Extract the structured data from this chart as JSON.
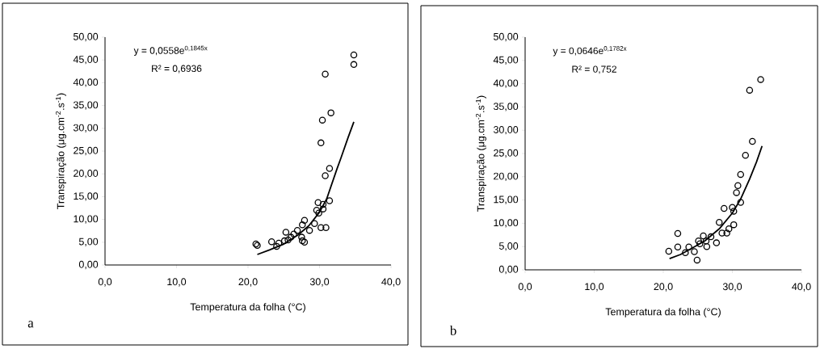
{
  "chart_data": [
    {
      "type": "scatter",
      "xlabel": "Temperatura da folha (°C)",
      "ylabel": "Transpiração (μg.cm$^{-2}$.s$^{-1}$)",
      "marker": "circle",
      "xlim": [
        0,
        40
      ],
      "ylim": [
        0,
        50
      ],
      "xticks": [
        {
          "value": 0,
          "label": "0,0"
        },
        {
          "value": 10,
          "label": "10,0"
        },
        {
          "value": 20,
          "label": "20,0"
        },
        {
          "value": 30,
          "label": "30,0"
        },
        {
          "value": 40,
          "label": "40,0"
        }
      ],
      "yticks": [
        {
          "value": 0,
          "label": "0,00"
        },
        {
          "value": 5,
          "label": "5,00"
        },
        {
          "value": 10,
          "label": "10,00"
        },
        {
          "value": 15,
          "label": "15,00"
        },
        {
          "value": 20,
          "label": "20,00"
        },
        {
          "value": 25,
          "label": "25,00"
        },
        {
          "value": 30,
          "label": "30,00"
        },
        {
          "value": 35,
          "label": "35,00"
        },
        {
          "value": 40,
          "label": "40,00"
        },
        {
          "value": 45,
          "label": "45,00"
        },
        {
          "value": 50,
          "label": "50,00"
        }
      ],
      "annotations": [
        "y = 0,0558e$^{0,1845x}$",
        "R² = 0,6936",
        "a"
      ],
      "series": [
        {
          "color": "#000000",
          "x": [
            34.8,
            34.8,
            30.8,
            31.6,
            30.4,
            30.2,
            31.4,
            30.8,
            31.4,
            29.8,
            30.5,
            29.6,
            30.5,
            29.9,
            27.9,
            27.6,
            29.3,
            28.6,
            30.2,
            30.9,
            26.9,
            26.4,
            25.3,
            26.0,
            27.5,
            27.9,
            27.6,
            25.1,
            24.3,
            23.3,
            25.6,
            21.1,
            21.3,
            24.0
          ],
          "values": [
            46.1,
            44.0,
            41.9,
            33.4,
            31.8,
            26.8,
            21.2,
            19.6,
            14.1,
            13.7,
            13.3,
            12.0,
            12.3,
            11.4,
            9.8,
            8.8,
            9.1,
            7.6,
            8.2,
            8.2,
            7.6,
            6.8,
            7.2,
            6.1,
            6.1,
            5.0,
            5.3,
            5.3,
            4.8,
            5.1,
            5.5,
            4.6,
            4.3,
            4.1
          ]
        },
        {
          "type": "line",
          "marker": "none",
          "color": "#000000",
          "x": [
            21.3,
            23,
            25,
            27,
            28.5,
            30,
            31,
            32.4,
            33,
            34,
            34.8
          ],
          "values": [
            2.3,
            3.3,
            4.6,
            6.6,
            8.6,
            11.6,
            14.5,
            20.9,
            23.5,
            28.0,
            31.4
          ]
        }
      ]
    },
    {
      "type": "scatter",
      "xlabel": "Temperatura da folha (°C)",
      "ylabel": "Transpiração (μg.cm$^{-2}$.s$^{-1}$)",
      "marker": "circle",
      "xlim": [
        0,
        40
      ],
      "ylim": [
        0,
        50
      ],
      "xticks": [
        {
          "value": 0,
          "label": "0,0"
        },
        {
          "value": 10,
          "label": "10,0"
        },
        {
          "value": 20,
          "label": "20,0"
        },
        {
          "value": 30,
          "label": "30,0"
        },
        {
          "value": 40,
          "label": "40,0"
        }
      ],
      "yticks": [
        {
          "value": 0,
          "label": "0,00"
        },
        {
          "value": 5,
          "label": "5,00"
        },
        {
          "value": 10,
          "label": "10,00"
        },
        {
          "value": 15,
          "label": "15,00"
        },
        {
          "value": 20,
          "label": "20,00"
        },
        {
          "value": 25,
          "label": "25,00"
        },
        {
          "value": 30,
          "label": "30,00"
        },
        {
          "value": 35,
          "label": "35,00"
        },
        {
          "value": 40,
          "label": "40,00"
        },
        {
          "value": 45,
          "label": "45,00"
        },
        {
          "value": 50,
          "label": "50,00"
        }
      ],
      "annotations": [
        "y = 0,0646e$^{0,1782x}$",
        "R² = 0,752",
        "b"
      ],
      "series": [
        {
          "color": "#000000",
          "x": [
            34.1,
            32.5,
            32.9,
            31.9,
            31.2,
            30.8,
            30.6,
            31.2,
            28.8,
            30.0,
            30.2,
            28.1,
            30.2,
            29.5,
            28.5,
            29.2,
            22.1,
            26.9,
            25.8,
            26.2,
            27.7,
            25.1,
            25.3,
            26.3,
            23.7,
            22.1,
            24.5,
            20.8,
            23.2,
            24.9
          ],
          "values": [
            40.9,
            38.6,
            27.6,
            24.6,
            20.5,
            18.1,
            16.6,
            14.5,
            13.2,
            13.4,
            12.6,
            10.2,
            9.7,
            8.8,
            7.9,
            7.9,
            7.8,
            7.1,
            7.3,
            6.2,
            5.8,
            6.2,
            5.6,
            5.0,
            4.9,
            4.9,
            3.9,
            4.0,
            3.7,
            2.1
          ]
        },
        {
          "type": "line",
          "marker": "none",
          "color": "#000000",
          "x": [
            20.9,
            22.5,
            24.2,
            26,
            28.1,
            30,
            31.2,
            32.5,
            33.5,
            34.3
          ],
          "values": [
            2.4,
            3.3,
            4.7,
            6.2,
            8.8,
            12.2,
            15.2,
            19.5,
            23.2,
            26.6
          ]
        }
      ]
    }
  ]
}
